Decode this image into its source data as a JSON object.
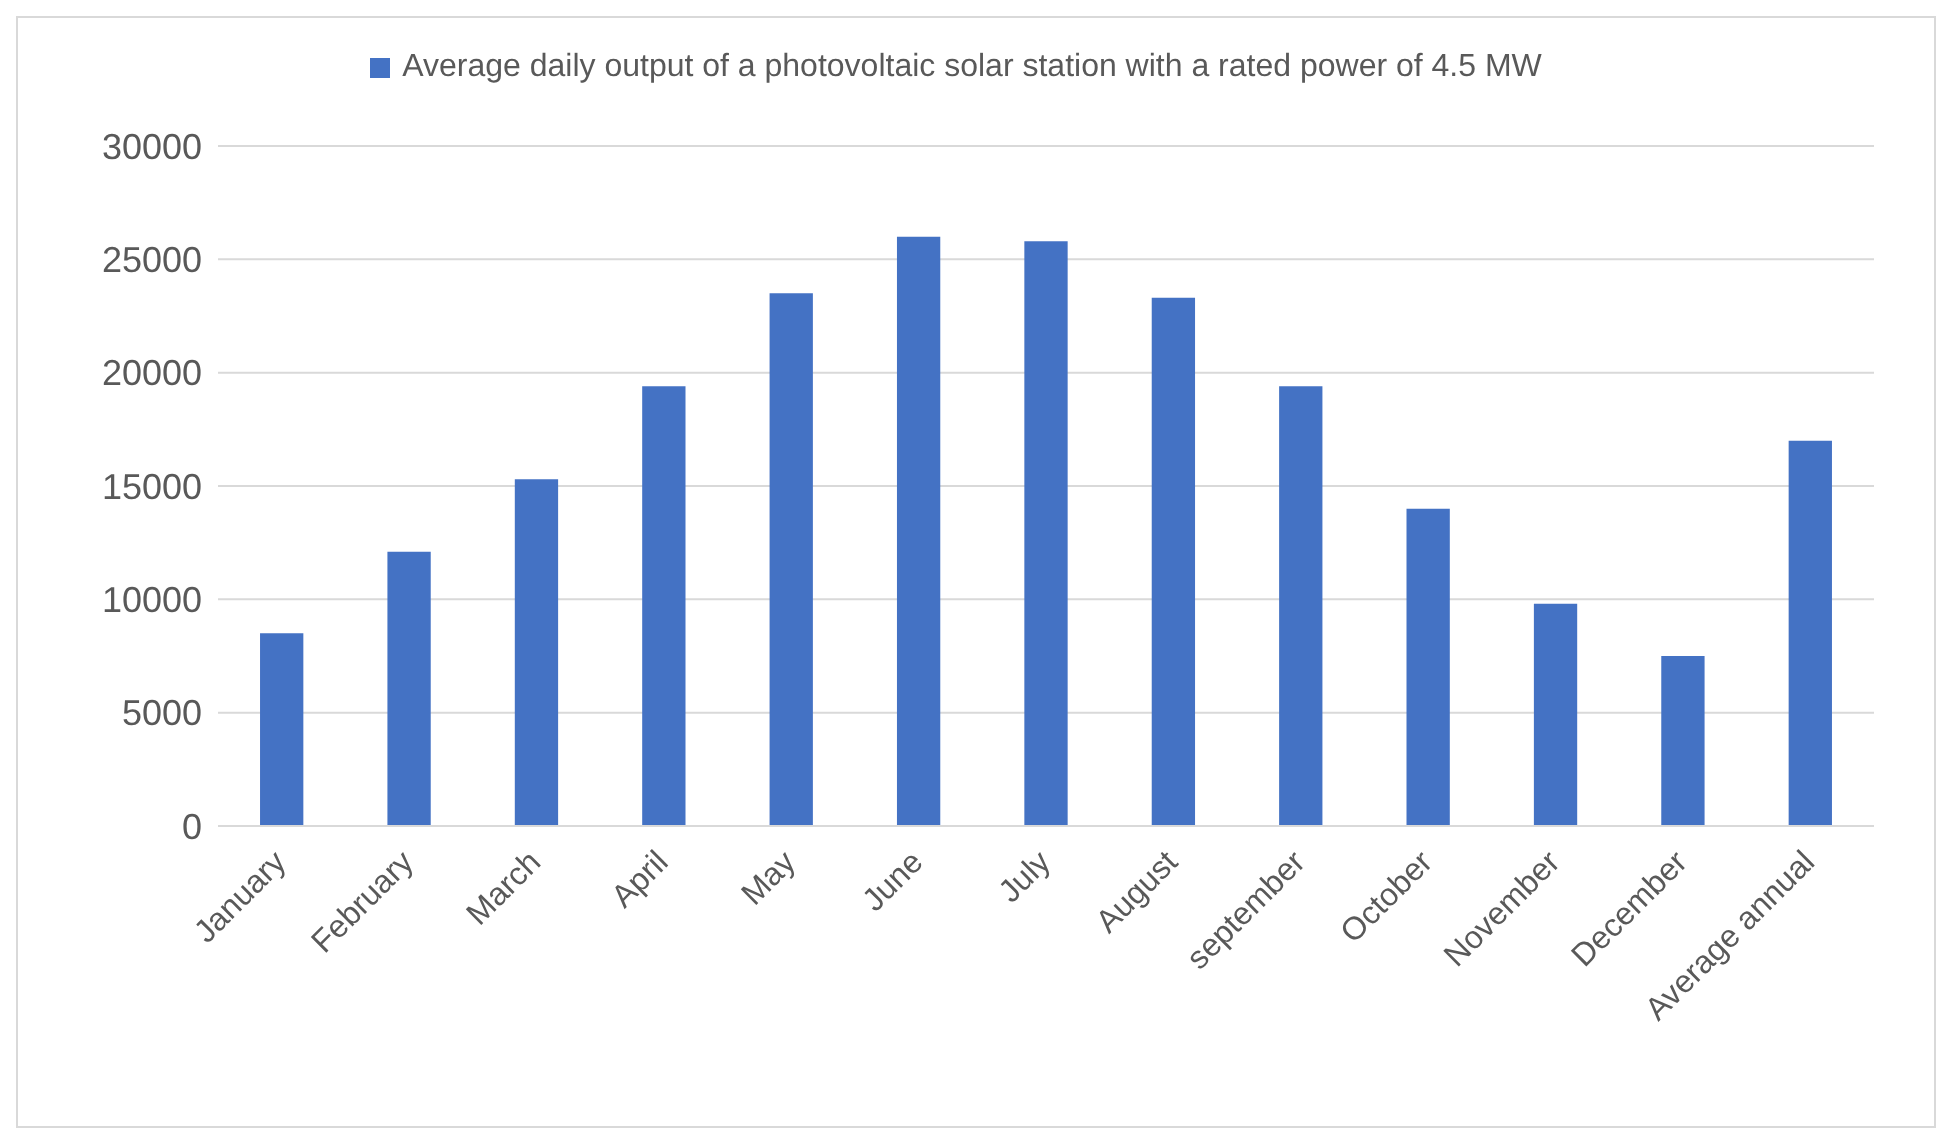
{
  "chart_data": {
    "type": "bar",
    "categories": [
      "January",
      "February",
      "March",
      "April",
      "May",
      "June",
      "July",
      "August",
      "september",
      "October",
      "November",
      "December",
      "Average annual"
    ],
    "series": [
      {
        "name": "Average daily output of a photovoltaic solar station with a rated power of 4.5 MW",
        "color": "#4472c4",
        "values": [
          8500,
          12100,
          15300,
          19400,
          23500,
          26000,
          25800,
          23300,
          19400,
          14000,
          9800,
          7500,
          17000
        ]
      }
    ],
    "ylim": [
      0,
      30000
    ],
    "yticks": [
      0,
      5000,
      10000,
      15000,
      20000,
      25000,
      30000
    ],
    "grid": "y",
    "legend": "top"
  }
}
